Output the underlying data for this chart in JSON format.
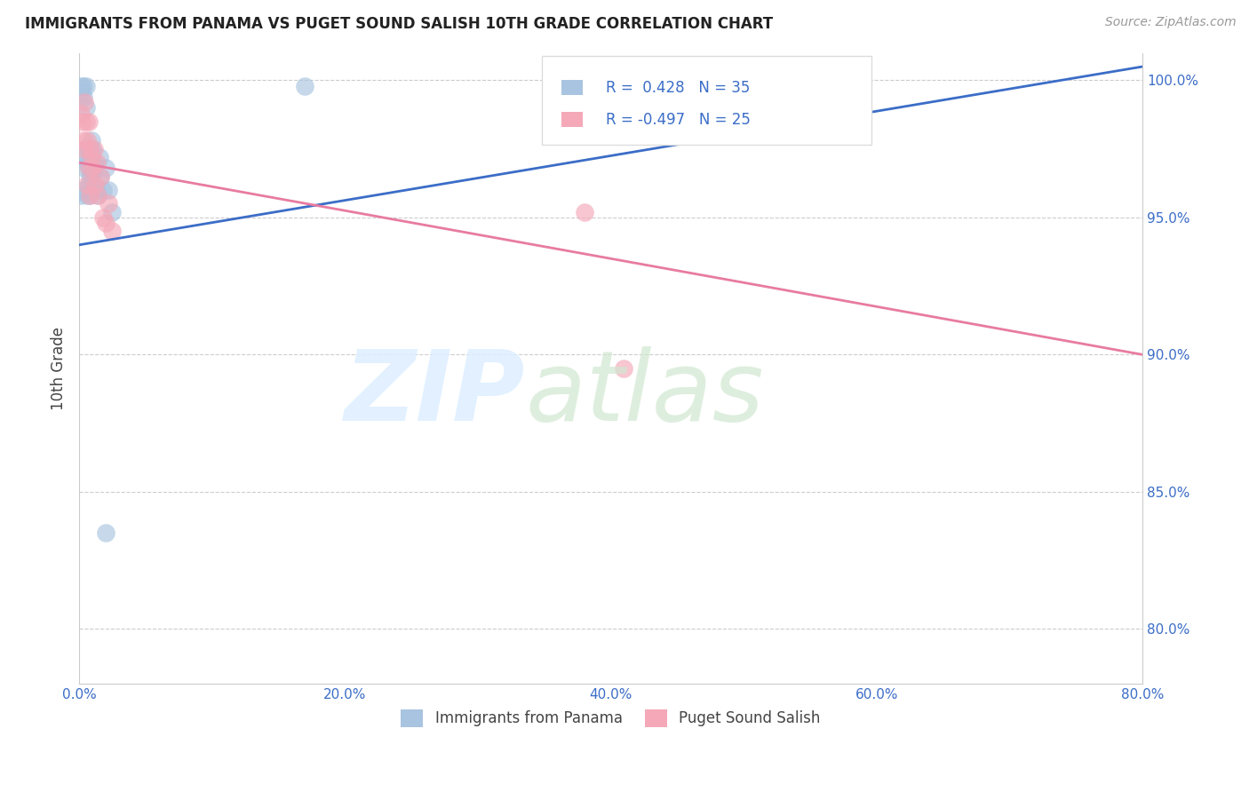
{
  "title": "IMMIGRANTS FROM PANAMA VS PUGET SOUND SALISH 10TH GRADE CORRELATION CHART",
  "source": "Source: ZipAtlas.com",
  "xlabel_ticks": [
    "0.0%",
    "20.0%",
    "40.0%",
    "60.0%",
    "80.0%"
  ],
  "ylabel_ticks": [
    "100.0%",
    "95.0%",
    "90.0%",
    "85.0%",
    "80.0%"
  ],
  "ylabel_label": "10th Grade",
  "legend_labels": [
    "Immigrants from Panama",
    "Puget Sound Salish"
  ],
  "blue_R": 0.428,
  "blue_N": 35,
  "pink_R": -0.497,
  "pink_N": 25,
  "blue_color": "#a8c4e0",
  "pink_color": "#f4a8b8",
  "blue_line_color": "#3b6dc7",
  "pink_line_color": "#e87ba0",
  "blue_scatter_x": [
    0.001,
    0.002,
    0.002,
    0.003,
    0.003,
    0.003,
    0.004,
    0.004,
    0.005,
    0.005,
    0.005,
    0.006,
    0.006,
    0.007,
    0.007,
    0.007,
    0.008,
    0.008,
    0.008,
    0.009,
    0.009,
    0.01,
    0.01,
    0.011,
    0.012,
    0.013,
    0.014,
    0.015,
    0.016,
    0.018,
    0.02,
    0.022,
    0.025,
    0.17,
    0.02
  ],
  "blue_scatter_y": [
    0.958,
    0.998,
    0.996,
    0.998,
    0.994,
    0.96,
    0.972,
    0.968,
    0.998,
    0.99,
    0.975,
    0.97,
    0.958,
    0.975,
    0.968,
    0.962,
    0.972,
    0.965,
    0.958,
    0.978,
    0.968,
    0.975,
    0.965,
    0.97,
    0.968,
    0.96,
    0.958,
    0.972,
    0.965,
    0.96,
    0.968,
    0.96,
    0.952,
    0.998,
    0.835
  ],
  "pink_scatter_x": [
    0.001,
    0.002,
    0.003,
    0.004,
    0.004,
    0.005,
    0.006,
    0.006,
    0.007,
    0.007,
    0.008,
    0.008,
    0.009,
    0.01,
    0.011,
    0.012,
    0.013,
    0.014,
    0.016,
    0.018,
    0.02,
    0.022,
    0.025,
    0.38,
    0.41
  ],
  "pink_scatter_y": [
    0.988,
    0.985,
    0.978,
    0.992,
    0.975,
    0.985,
    0.978,
    0.962,
    0.985,
    0.968,
    0.975,
    0.958,
    0.972,
    0.968,
    0.975,
    0.962,
    0.97,
    0.958,
    0.965,
    0.95,
    0.948,
    0.955,
    0.945,
    0.952,
    0.895
  ],
  "xlim": [
    0.0,
    0.8
  ],
  "ylim": [
    0.78,
    1.01
  ],
  "yticks": [
    1.0,
    0.95,
    0.9,
    0.85,
    0.8
  ],
  "xticks": [
    0.0,
    0.2,
    0.4,
    0.6,
    0.8
  ],
  "grid_color": "#cccccc",
  "pink_line_x0": 0.0,
  "pink_line_x1": 0.8,
  "pink_line_y0": 0.97,
  "pink_line_y1": 0.9,
  "blue_line_x0": 0.0,
  "blue_line_x1": 0.8,
  "blue_line_y0": 0.94,
  "blue_line_y1": 1.005
}
